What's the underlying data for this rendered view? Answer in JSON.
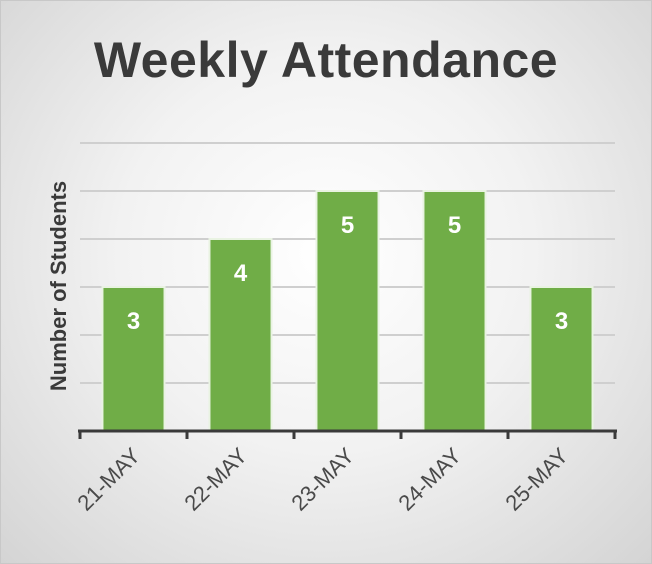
{
  "chart_data": {
    "type": "bar",
    "title": "Weekly Attendance",
    "xlabel": "",
    "ylabel": "Number of Students",
    "categories": [
      "21-MAY",
      "22-MAY",
      "23-MAY",
      "24-MAY",
      "25-MAY"
    ],
    "values": [
      3,
      4,
      5,
      5,
      3
    ],
    "ylim": [
      0,
      6
    ],
    "grid": true,
    "legend": "none",
    "bar_color": "#70ad47",
    "data_labels": "inside-end"
  }
}
